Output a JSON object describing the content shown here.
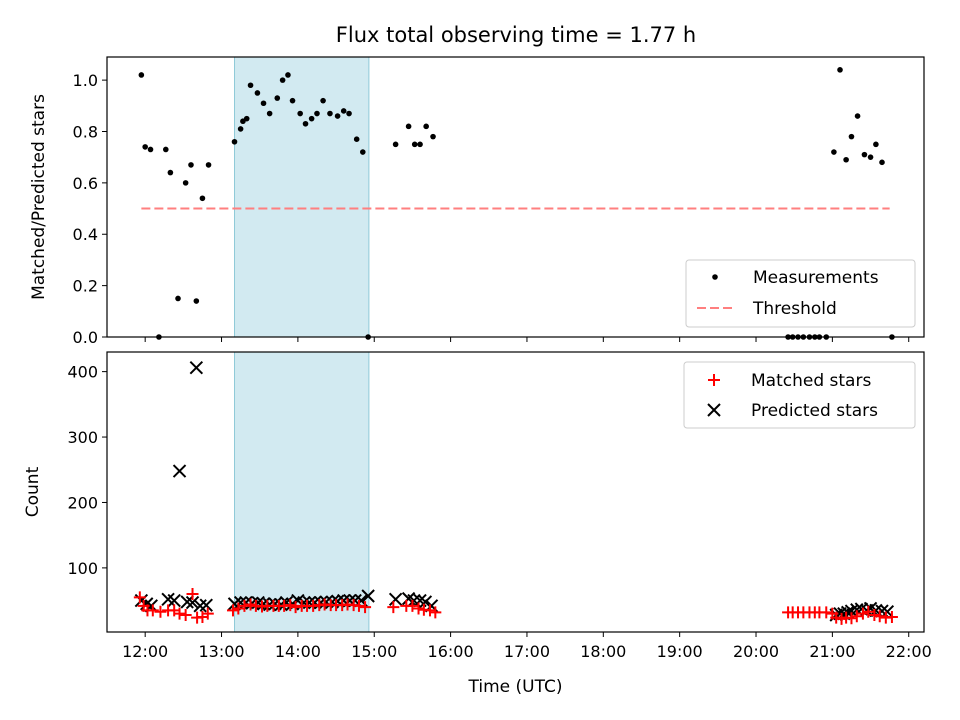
{
  "title": "Flux total observing time = 1.77 h",
  "colors": {
    "measure": "#000000",
    "threshold": "#ff7f7f",
    "matched": "#ff0000",
    "predicted": "#000000",
    "span": "#add8e6"
  },
  "chart_data": [
    {
      "type": "scatter",
      "ylabel": "Matched/Predicted stars",
      "xlim": [
        11.5,
        22.2
      ],
      "ylim": [
        0,
        1.09
      ],
      "yticks": [
        "0.0",
        "0.2",
        "0.4",
        "0.6",
        "0.8",
        "1.0"
      ],
      "ytick_values": [
        0,
        0.2,
        0.4,
        0.6,
        0.8,
        1.0
      ],
      "highlight_span": [
        13.17,
        14.93
      ],
      "threshold": {
        "value": 0.5,
        "x_range": [
          11.95,
          21.75
        ]
      },
      "legend": {
        "position": "lower right",
        "entries": [
          "Measurements",
          "Threshold"
        ]
      },
      "measurements": {
        "x": [
          11.95,
          12.0,
          12.07,
          12.18,
          12.27,
          12.33,
          12.43,
          12.53,
          12.6,
          12.67,
          12.75,
          12.83,
          13.17,
          13.25,
          13.28,
          13.33,
          13.38,
          13.47,
          13.55,
          13.63,
          13.73,
          13.8,
          13.87,
          13.93,
          14.03,
          14.1,
          14.18,
          14.25,
          14.33,
          14.42,
          14.52,
          14.6,
          14.67,
          14.77,
          14.85,
          14.92,
          15.28,
          15.45,
          15.53,
          15.6,
          15.68,
          15.77,
          20.42,
          20.48,
          20.55,
          20.62,
          20.7,
          20.77,
          20.83,
          20.92,
          21.02,
          21.1,
          21.18,
          21.25,
          21.33,
          21.42,
          21.5,
          21.57,
          21.65,
          21.78
        ],
        "y": [
          1.02,
          0.74,
          0.73,
          0.0,
          0.73,
          0.64,
          0.15,
          0.6,
          0.67,
          0.14,
          0.54,
          0.67,
          0.76,
          0.81,
          0.84,
          0.85,
          0.98,
          0.95,
          0.91,
          0.87,
          0.93,
          1.0,
          1.02,
          0.92,
          0.87,
          0.83,
          0.85,
          0.87,
          0.92,
          0.87,
          0.86,
          0.88,
          0.87,
          0.77,
          0.72,
          0.0,
          0.75,
          0.82,
          0.75,
          0.75,
          0.82,
          0.78,
          0.0,
          0.0,
          0.0,
          0.0,
          0.0,
          0.0,
          0.0,
          0.0,
          0.72,
          1.04,
          0.69,
          0.78,
          0.86,
          0.71,
          0.7,
          0.75,
          0.68,
          0.0
        ]
      }
    },
    {
      "type": "scatter",
      "ylabel": "Count",
      "xlabel": "Time (UTC)",
      "xlim": [
        11.5,
        22.2
      ],
      "ylim": [
        2,
        430
      ],
      "yticks": [
        "100",
        "200",
        "300",
        "400"
      ],
      "ytick_values": [
        100,
        200,
        300,
        400
      ],
      "xticks": [
        "12:00",
        "13:00",
        "14:00",
        "15:00",
        "16:00",
        "17:00",
        "18:00",
        "19:00",
        "20:00",
        "21:00",
        "22:00"
      ],
      "xtick_values": [
        12,
        13,
        14,
        15,
        16,
        17,
        18,
        19,
        20,
        21,
        22
      ],
      "highlight_span": [
        13.17,
        14.93
      ],
      "legend": {
        "position": "upper right",
        "entries": [
          "Matched stars",
          "Predicted stars"
        ]
      },
      "matched": {
        "x": [
          11.93,
          11.98,
          12.03,
          12.1,
          12.2,
          12.3,
          12.38,
          12.45,
          12.53,
          12.62,
          12.68,
          12.75,
          12.82,
          13.15,
          13.22,
          13.3,
          13.38,
          13.45,
          13.53,
          13.6,
          13.68,
          13.75,
          13.82,
          13.9,
          13.97,
          14.05,
          14.12,
          14.2,
          14.28,
          14.35,
          14.43,
          14.5,
          14.58,
          14.65,
          14.73,
          14.8,
          14.88,
          15.25,
          15.42,
          15.5,
          15.58,
          15.65,
          15.73,
          15.8,
          20.42,
          20.48,
          20.55,
          20.62,
          20.7,
          20.77,
          20.83,
          20.92,
          21.0,
          21.05,
          21.12,
          21.18,
          21.25,
          21.32,
          21.4,
          21.47,
          21.55,
          21.62,
          21.7,
          21.78
        ],
        "y": [
          55,
          42,
          35,
          35,
          33,
          35,
          35,
          30,
          28,
          60,
          24,
          25,
          30,
          35,
          38,
          42,
          44,
          42,
          41,
          42,
          42,
          42,
          42,
          43,
          40,
          42,
          42,
          42,
          43,
          44,
          43,
          43,
          43,
          44,
          43,
          42,
          40,
          40,
          42,
          42,
          38,
          36,
          35,
          32,
          32,
          32,
          32,
          32,
          32,
          32,
          32,
          32,
          30,
          24,
          22,
          24,
          23,
          26,
          30,
          33,
          28,
          26,
          24,
          25
        ]
      },
      "predicted": {
        "x": [
          11.95,
          12.02,
          12.08,
          12.3,
          12.38,
          12.45,
          12.55,
          12.62,
          12.67,
          12.72,
          12.8,
          13.17,
          13.25,
          13.32,
          13.4,
          13.48,
          13.55,
          13.63,
          13.7,
          13.78,
          13.85,
          13.93,
          14.0,
          14.08,
          14.15,
          14.22,
          14.3,
          14.37,
          14.45,
          14.52,
          14.6,
          14.68,
          14.75,
          14.83,
          14.92,
          15.28,
          15.45,
          15.52,
          15.6,
          15.67,
          15.75,
          21.05,
          21.1,
          21.15,
          21.2,
          21.25,
          21.32,
          21.38,
          21.45,
          21.5,
          21.57,
          21.65,
          21.72
        ],
        "y": [
          50,
          45,
          42,
          52,
          50,
          248,
          48,
          47,
          406,
          42,
          43,
          45,
          47,
          47,
          46,
          47,
          45,
          44,
          45,
          44,
          47,
          45,
          50,
          47,
          47,
          47,
          47,
          48,
          48,
          49,
          50,
          50,
          50,
          50,
          57,
          52,
          53,
          50,
          50,
          48,
          42,
          28,
          30,
          30,
          32,
          34,
          36,
          37,
          35,
          38,
          35,
          34,
          33
        ]
      }
    }
  ]
}
